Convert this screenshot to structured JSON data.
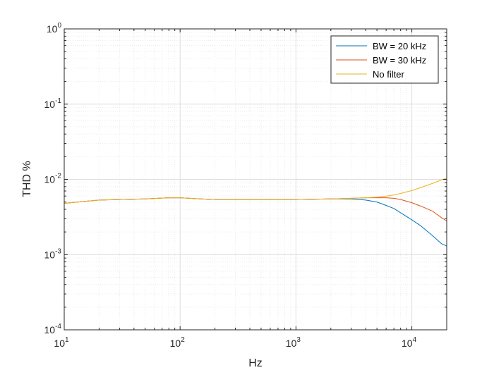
{
  "chart_data": {
    "type": "line",
    "xlabel": "Hz",
    "ylabel": "THD %",
    "xscale": "log",
    "yscale": "log",
    "xlim": [
      10,
      20000
    ],
    "ylim": [
      0.0001,
      1
    ],
    "grid": true,
    "minor_grid": true,
    "legend_position": "top-right",
    "x_ticks": [
      {
        "value": 10,
        "base": "10",
        "exp": "1"
      },
      {
        "value": 100,
        "base": "10",
        "exp": "2"
      },
      {
        "value": 1000,
        "base": "10",
        "exp": "3"
      },
      {
        "value": 10000,
        "base": "10",
        "exp": "4"
      }
    ],
    "y_ticks": [
      {
        "value": 0.0001,
        "base": "10",
        "exp": "-4"
      },
      {
        "value": 0.001,
        "base": "10",
        "exp": "-3"
      },
      {
        "value": 0.01,
        "base": "10",
        "exp": "-2"
      },
      {
        "value": 0.1,
        "base": "10",
        "exp": "-1"
      },
      {
        "value": 1,
        "base": "10",
        "exp": "0"
      }
    ],
    "series": [
      {
        "name": "BW = 20 kHz",
        "color": "#0072BD",
        "x": [
          10,
          15,
          20,
          30,
          50,
          80,
          100,
          150,
          200,
          300,
          500,
          1000,
          2000,
          3000,
          4000,
          5000,
          6000,
          7000,
          8000,
          10000,
          12000,
          15000,
          18000,
          20000
        ],
        "y": [
          0.0048,
          0.0051,
          0.0053,
          0.0054,
          0.0055,
          0.0057,
          0.0057,
          0.0055,
          0.0054,
          0.0054,
          0.0054,
          0.0054,
          0.0055,
          0.0055,
          0.0053,
          0.005,
          0.0045,
          0.0041,
          0.0036,
          0.0029,
          0.0024,
          0.0018,
          0.0014,
          0.0013
        ]
      },
      {
        "name": "BW = 30 kHz",
        "color": "#D95319",
        "x": [
          10,
          15,
          20,
          30,
          50,
          80,
          100,
          150,
          200,
          300,
          500,
          1000,
          2000,
          3000,
          4000,
          5000,
          6000,
          7000,
          8000,
          10000,
          12000,
          15000,
          18000,
          20000
        ],
        "y": [
          0.0048,
          0.0051,
          0.0053,
          0.0054,
          0.0055,
          0.0057,
          0.0057,
          0.0055,
          0.0054,
          0.0054,
          0.0054,
          0.0054,
          0.0055,
          0.0056,
          0.0057,
          0.0057,
          0.0057,
          0.0056,
          0.0054,
          0.0049,
          0.0044,
          0.0038,
          0.0031,
          0.0028
        ]
      },
      {
        "name": "No filter",
        "color": "#EDB120",
        "x": [
          10,
          15,
          20,
          30,
          50,
          80,
          100,
          150,
          200,
          300,
          500,
          1000,
          2000,
          3000,
          4000,
          5000,
          6000,
          7000,
          8000,
          10000,
          12000,
          15000,
          18000,
          20000
        ],
        "y": [
          0.0048,
          0.0051,
          0.0053,
          0.0054,
          0.0055,
          0.0057,
          0.0057,
          0.0055,
          0.0054,
          0.0054,
          0.0054,
          0.0054,
          0.0055,
          0.0056,
          0.0057,
          0.0058,
          0.006,
          0.0062,
          0.0065,
          0.0071,
          0.0078,
          0.0088,
          0.0098,
          0.0104
        ]
      }
    ]
  }
}
